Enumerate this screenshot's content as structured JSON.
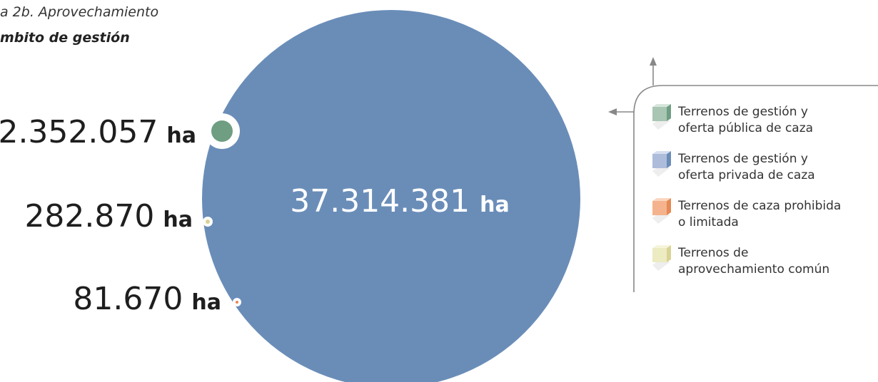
{
  "title_line1": "a 2b. Aprovechamiento",
  "title_line2": "mbito de gestión",
  "chart_data": {
    "type": "bubble",
    "unit": "ha",
    "series": [
      {
        "name": "Terrenos de gestión y oferta pública de caza",
        "value": 2352057,
        "label": "2.352.057",
        "color": "#6f9e82"
      },
      {
        "name": "Terrenos de gestión y oferta privada de caza",
        "value": 37314381,
        "label": "37.314.381",
        "color": "#6a8db8"
      },
      {
        "name": "Terrenos de caza prohibida o limitada",
        "value": 81670,
        "label": "81.670",
        "color": "#e58a55"
      },
      {
        "name": "Terrenos de aprovechamiento común",
        "value": 282870,
        "label": "282.870",
        "color": "#d9d394"
      }
    ]
  },
  "legend": {
    "items": [
      {
        "line1": "Terrenos de gestión y",
        "line2": "oferta pública de caza",
        "color": "#a8c6b3",
        "shade": "#6f9e82"
      },
      {
        "line1": "Terrenos de gestión y",
        "line2": "oferta privada de caza",
        "color": "#aebcdc",
        "shade": "#6a8db8"
      },
      {
        "line1": "Terrenos de caza prohibida",
        "line2": "o limitada",
        "color": "#f4b38d",
        "shade": "#e58a55"
      },
      {
        "line1": "Terrenos de",
        "line2": "aprovechamiento común",
        "color": "#ecebc2",
        "shade": "#d9d394"
      }
    ]
  }
}
